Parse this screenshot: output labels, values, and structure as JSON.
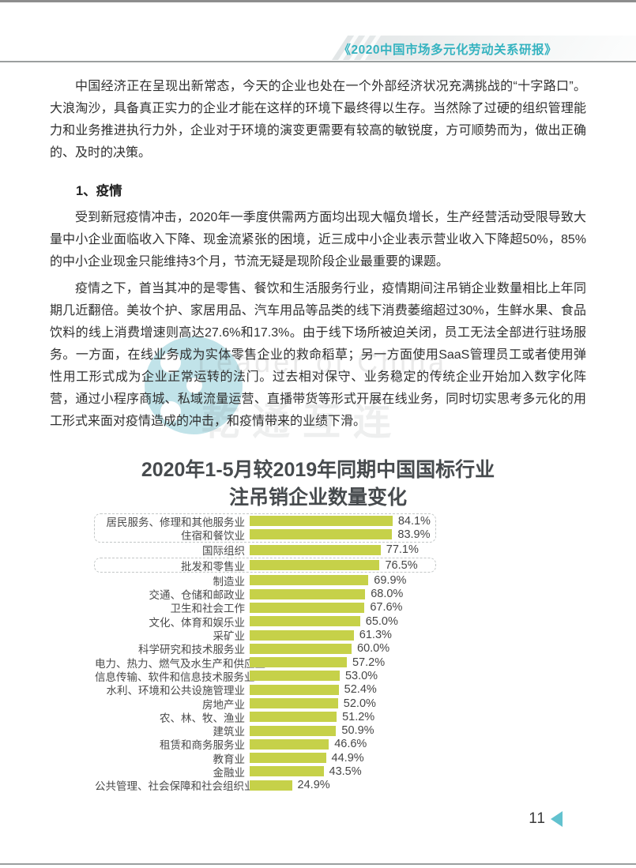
{
  "header": {
    "title": "《2020中国市场多元化劳动关系研报》"
  },
  "body": {
    "paragraph1": "中国经济正在呈现出新常态，今天的企业也处在一个外部经济状况充满挑战的“十字路口”。大浪淘沙，具备真正实力的企业才能在这样的环境下最终得以生存。当然除了过硬的组织管理能力和业务推进执行力外，企业对于环境的演变更需要有较高的敏锐度，方可顺势而为，做出正确的、及时的决策。",
    "section_heading": "1、疫情",
    "paragraph2": "受到新冠疫情冲击，2020年一季度供需两方面均出现大幅负增长，生产经营活动受限导致大量中小企业面临收入下降、现金流紧张的困境，近三成中小企业表示营业收入下降超50%，85%的中小企业现金只能维持3个月，节流无疑是现阶段企业最重要的课题。",
    "paragraph3": "疫情之下，首当其冲的是零售、餐饮和生活服务行业，疫情期间注吊销企业数量相比上年同期几近翻倍。美妆个护、家居用品、汽车用品等品类的线下消费萎缩超过30%，生鲜水果、食品饮料的线上消费增速则高达27.6%和17.3%。由于线下场所被迫关闭，员工无法全部进行驻场服务。一方面，在线业务成为实体零售企业的救命稻草；另一方面使用SaaS管理员工或者使用弹性用工形式成为企业正常运转的法门。过去相对保守、业务稳定的传统企业开始加入数字化阵营，通过小程序商城、私域流量运营、直播带货等形式开展在线业务，同时切实思考多元化的用工形式来面对疫情造成的冲击，和疫情带来的业绩下滑。"
  },
  "watermark": {
    "english": "Leader of China",
    "chinese": "乾通互连"
  },
  "chart_data": {
    "type": "bar",
    "orientation": "horizontal",
    "title": [
      "2020年1-5月较2019年同期中国国标行业",
      "注吊销企业数量变化"
    ],
    "categories": [
      "居民服务、修理和其他服务业",
      "住宿和餐饮业",
      "国际组织",
      "批发和零售业",
      "制造业",
      "交通、仓储和邮政业",
      "卫生和社会工作",
      "文化、体育和娱乐业",
      "采矿业",
      "科学研究和技术服务业",
      "电力、热力、燃气及水生产和供应业",
      "信息传输、软件和信息技术服务业",
      "水利、环境和公共设施管理业",
      "房地产业",
      "农、林、牧、渔业",
      "建筑业",
      "租赁和商务服务业",
      "教育业",
      "金融业",
      "公共管理、社会保障和社会组织业"
    ],
    "values": [
      84.1,
      83.9,
      77.1,
      76.5,
      69.9,
      68.0,
      67.6,
      65.0,
      61.3,
      60.0,
      57.2,
      53.0,
      52.4,
      52.0,
      51.2,
      50.9,
      46.6,
      44.9,
      43.5,
      24.9
    ],
    "value_labels": [
      "84.1%",
      "83.9%",
      "77.1%",
      "76.5%",
      "69.9%",
      "68.0%",
      "67.6%",
      "65.0%",
      "61.3%",
      "60.0%",
      "57.2%",
      "53.0%",
      "52.4%",
      "52.0%",
      "51.2%",
      "50.9%",
      "46.6%",
      "44.9%",
      "43.5%",
      "24.9%"
    ],
    "xlim": [
      0,
      90
    ],
    "grid": false,
    "legend": null,
    "bar_color": "#c6d149",
    "highlight_boxes": [
      {
        "start": 0,
        "end": 1
      },
      {
        "start": 3,
        "end": 3
      }
    ]
  },
  "footer": {
    "page_number": "11"
  },
  "colors": {
    "accent_teal": "#35b3c0",
    "bar_green": "#c6d149",
    "triangle_teal": "#62c2cf",
    "rule_gray": "#9b9f9f"
  }
}
